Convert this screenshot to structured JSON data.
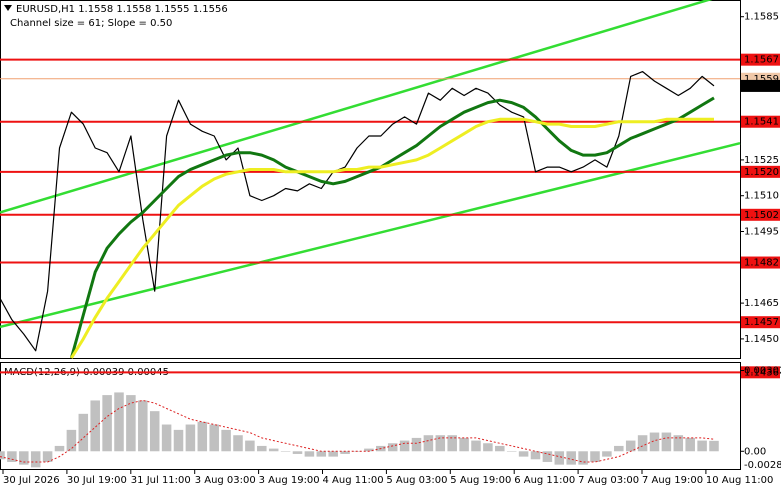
{
  "chart_data": {
    "type": "line",
    "title": "EURUSD,H1  1.1558 1.1558 1.1555 1.1556",
    "subtitle": "Channel size = 61; Slope = 0.50",
    "ylim": [
      1.1442,
      1.1592
    ],
    "yticks": [
      1.1585,
      1.1525,
      {
        "value": 1.151,
        "label": "1.1510"
      },
      1.1495,
      1.1465,
      {
        "value": 1.145,
        "label": "1.1450"
      }
    ],
    "levels": [
      1.1567,
      1.1541,
      {
        "value": 1.152,
        "label": "1.1520"
      },
      1.1502,
      1.1482,
      1.1457,
      1.1436
    ],
    "level_color": "#ee1111",
    "ask_line": 1.1559,
    "last_price": 1.1556,
    "x_labels": [
      "30 Jul 2026",
      "30 Jul 19:00",
      "31 Jul 11:00",
      "3 Aug 03:00",
      "3 Aug 19:00",
      "4 Aug 11:00",
      "5 Aug 03:00",
      "5 Aug 19:00",
      "6 Aug 11:00",
      "7 Aug 03:00",
      "7 Aug 19:00",
      "10 Aug 11:00"
    ],
    "channel": {
      "color": "#33dd33",
      "upper": [
        1.1503,
        1.1596
      ],
      "lower": [
        1.1455,
        1.1532
      ]
    },
    "series": [
      {
        "name": "EURUSD",
        "color": "#000000",
        "width": 1.2,
        "values": [
          1.1467,
          1.1458,
          1.1452,
          1.1445,
          1.147,
          1.153,
          1.1545,
          1.154,
          1.153,
          1.1528,
          1.152,
          1.1535,
          1.15,
          1.147,
          1.1535,
          1.155,
          1.154,
          1.1537,
          1.1535,
          1.1525,
          1.153,
          1.151,
          1.1508,
          1.151,
          1.1513,
          1.1512,
          1.1515,
          1.1513,
          1.152,
          1.1522,
          1.153,
          1.1535,
          1.1535,
          1.154,
          1.1543,
          1.154,
          1.1553,
          1.155,
          1.1555,
          1.1552,
          1.1555,
          1.1553,
          1.1548,
          1.1545,
          1.1543,
          1.152,
          1.1522,
          1.1522,
          1.152,
          1.1522,
          1.1525,
          1.1522,
          1.1535,
          1.156,
          1.1562,
          1.1558,
          1.1555,
          1.1552,
          1.1555,
          1.156,
          1.1556
        ]
      },
      {
        "name": "MA30",
        "color": "#117711",
        "width": 3,
        "values": [
          null,
          null,
          null,
          null,
          null,
          null,
          1.1442,
          1.146,
          1.1478,
          1.1488,
          1.1494,
          1.1499,
          1.1503,
          1.1508,
          1.1513,
          1.1518,
          1.1521,
          1.1523,
          1.1525,
          1.1527,
          1.1528,
          1.1528,
          1.1527,
          1.1525,
          1.1522,
          1.152,
          1.1518,
          1.1516,
          1.1515,
          1.1516,
          1.1518,
          1.152,
          1.1522,
          1.1525,
          1.1528,
          1.1531,
          1.1535,
          1.1539,
          1.1542,
          1.1545,
          1.1547,
          1.1549,
          1.155,
          1.1549,
          1.1547,
          1.1543,
          1.1538,
          1.1533,
          1.1529,
          1.1527,
          1.1527,
          1.1528,
          1.1531,
          1.1534,
          1.1536,
          1.1538,
          1.154,
          1.1542,
          1.1545,
          1.1548,
          1.1551
        ]
      },
      {
        "name": "MA50",
        "color": "#eeee22",
        "width": 3,
        "values": [
          null,
          null,
          null,
          null,
          null,
          null,
          1.1442,
          1.145,
          1.1459,
          1.1467,
          1.1474,
          1.1481,
          1.1488,
          1.1494,
          1.15,
          1.1506,
          1.151,
          1.1514,
          1.1517,
          1.1519,
          1.152,
          1.1521,
          1.1521,
          1.1521,
          1.152,
          1.152,
          1.152,
          1.152,
          1.152,
          1.1521,
          1.1521,
          1.1522,
          1.1522,
          1.1523,
          1.1524,
          1.1525,
          1.1527,
          1.153,
          1.1533,
          1.1536,
          1.1539,
          1.1541,
          1.1542,
          1.1542,
          1.1542,
          1.1541,
          1.154,
          1.154,
          1.1539,
          1.1539,
          1.1539,
          1.154,
          1.1541,
          1.1541,
          1.1541,
          1.1541,
          1.1542,
          1.1542,
          1.1542,
          1.1542,
          1.1542
        ]
      }
    ],
    "macd": {
      "label": "MACD(12,26,9) 0.00039 0.00045",
      "ylim": [
        -0.0007,
        0.0033
      ],
      "yticks": [
        0.00302,
        {
          "value": 0,
          "label": "0.00"
        }
      ],
      "bottom_label": "-0.00284",
      "hist_color": "#c0c0c0",
      "signal_color": "#dd2222",
      "hist": [
        -0.0003,
        -0.0004,
        -0.0005,
        -0.0006,
        -0.0004,
        0.0002,
        0.0008,
        0.0014,
        0.0019,
        0.0021,
        0.0022,
        0.0021,
        0.0019,
        0.0015,
        0.001,
        0.0008,
        0.001,
        0.0011,
        0.001,
        0.0008,
        0.0006,
        0.0004,
        0.0002,
        0.0001,
        0.0,
        -0.0001,
        -0.0002,
        -0.0002,
        -0.0002,
        -0.0001,
        0.0,
        0.0001,
        0.0002,
        0.0003,
        0.0004,
        0.0005,
        0.0006,
        0.0006,
        0.0006,
        0.0005,
        0.0004,
        0.0003,
        0.0002,
        0.0,
        -0.0002,
        -0.0003,
        -0.0004,
        -0.0005,
        -0.0005,
        -0.0005,
        -0.0004,
        -0.0002,
        0.0002,
        0.0004,
        0.0006,
        0.0007,
        0.0007,
        0.0006,
        0.0005,
        0.0004,
        0.00039
      ],
      "signal": [
        -0.0002,
        -0.0003,
        -0.0004,
        -0.0004,
        -0.0004,
        -0.0002,
        0.0001,
        0.0005,
        0.0009,
        0.0013,
        0.0016,
        0.0018,
        0.0019,
        0.0018,
        0.0016,
        0.0014,
        0.0012,
        0.0011,
        0.001,
        0.0009,
        0.0008,
        0.0007,
        0.0005,
        0.0004,
        0.0003,
        0.0002,
        0.0001,
        0.0,
        0.0,
        0.0,
        0.0,
        0.0,
        0.0001,
        0.0002,
        0.0003,
        0.0003,
        0.0004,
        0.0005,
        0.0005,
        0.0005,
        0.0005,
        0.0004,
        0.0003,
        0.0002,
        0.0001,
        0.0,
        -0.0001,
        -0.0002,
        -0.0003,
        -0.0004,
        -0.0004,
        -0.0003,
        -0.0002,
        0.0,
        0.0002,
        0.0004,
        0.0005,
        0.0005,
        0.0005,
        0.0005,
        0.00045
      ]
    }
  }
}
